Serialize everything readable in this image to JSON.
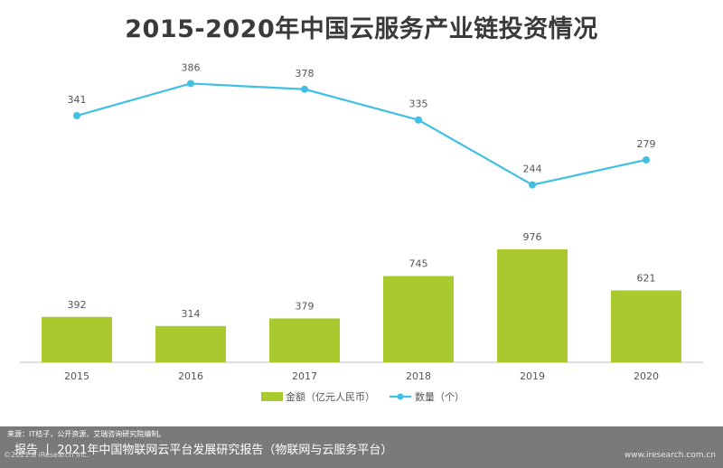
{
  "title": "2015-2020年中国云服务产业链投资情况",
  "chart_data": {
    "type": "bar",
    "categories": [
      "2015",
      "2016",
      "2017",
      "2018",
      "2019",
      "2020"
    ],
    "series": [
      {
        "name": "金额（亿元人民币）",
        "type": "bar",
        "values": [
          392,
          314,
          379,
          745,
          976,
          621
        ]
      },
      {
        "name": "数量（个）",
        "type": "line",
        "values": [
          341,
          386,
          378,
          335,
          244,
          279
        ]
      }
    ],
    "colors": {
      "bar": "#a9c92f",
      "line": "#3fbfe3",
      "axis": "#bdbdbd",
      "label": "#555555"
    },
    "legend_position": "bottom-center",
    "grid": false
  },
  "footer": {
    "source": "来源：IT桔子，公开资源，艾瑞咨询研究院编制。",
    "copyright": "©2021.8 iResearch Inc.",
    "report": "报告  丨  2021年中国物联网云平台发展研究报告（物联网与云服务平台）",
    "website": "www.iresearch.com.cn"
  }
}
